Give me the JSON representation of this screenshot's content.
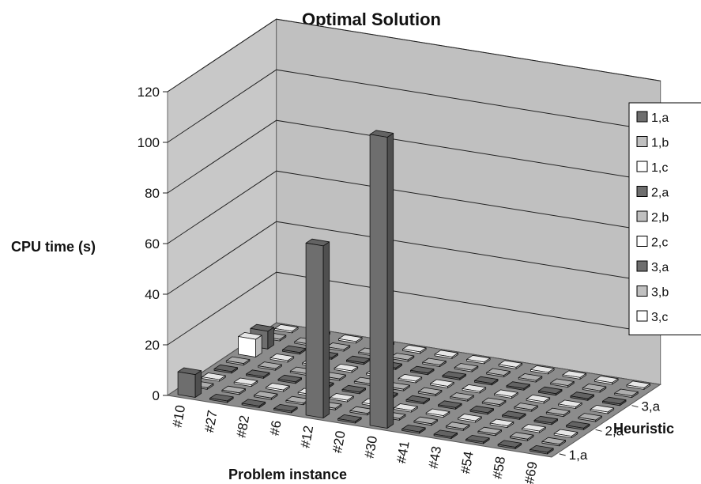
{
  "chart_data": {
    "type": "bar3d",
    "title": "Optimal Solution",
    "ylabel": "CPU time (s)",
    "xlabel": "Problem instance",
    "zlabel": "Heuristic",
    "ylim": [
      0,
      120
    ],
    "yticks": [
      0,
      20,
      40,
      60,
      80,
      100,
      120
    ],
    "categories": [
      "#10",
      "#27",
      "#82",
      "#6",
      "#12",
      "#20",
      "#30",
      "#41",
      "#43",
      "#54",
      "#58",
      "#69"
    ],
    "depth_tick_labels": [
      "1,a",
      "2,a",
      "3,a"
    ],
    "grid": true,
    "legend_position": "right",
    "series": [
      {
        "name": "1,a",
        "color": "#6e6e6e",
        "values": [
          9,
          0.6,
          0.6,
          0.6,
          68,
          0.6,
          115,
          0.6,
          0.6,
          0.6,
          0.6,
          0.6
        ]
      },
      {
        "name": "1,b",
        "color": "#c0c0c0",
        "values": [
          0.6,
          0.6,
          0.6,
          0.6,
          0.6,
          0.6,
          0.6,
          0.6,
          0.6,
          0.6,
          0.6,
          0.6
        ]
      },
      {
        "name": "1,c",
        "color": "#ffffff",
        "values": [
          0.6,
          0.6,
          0.6,
          0.6,
          0.6,
          0.6,
          0.6,
          0.6,
          0.6,
          0.6,
          0.6,
          0.6
        ]
      },
      {
        "name": "2,a",
        "color": "#6e6e6e",
        "values": [
          0.6,
          0.6,
          0.6,
          0.6,
          0.6,
          0.6,
          0.6,
          0.6,
          0.6,
          0.6,
          0.6,
          0.6
        ]
      },
      {
        "name": "2,b",
        "color": "#c0c0c0",
        "values": [
          0.6,
          0.6,
          0.6,
          0.6,
          0.6,
          0.6,
          0.6,
          0.6,
          0.6,
          0.6,
          0.6,
          0.6
        ]
      },
      {
        "name": "2,c",
        "color": "#ffffff",
        "values": [
          7,
          0.6,
          0.6,
          0.6,
          0.6,
          0.6,
          0.6,
          0.6,
          0.6,
          0.6,
          0.6,
          0.6
        ]
      },
      {
        "name": "3,a",
        "color": "#6e6e6e",
        "values": [
          7,
          0.6,
          0.6,
          0.6,
          0.6,
          0.6,
          0.6,
          0.6,
          0.6,
          0.6,
          0.6,
          0.6
        ]
      },
      {
        "name": "3,b",
        "color": "#c0c0c0",
        "values": [
          0.6,
          0.6,
          0.6,
          0.6,
          0.6,
          0.6,
          0.6,
          0.6,
          0.6,
          0.6,
          0.6,
          0.6
        ]
      },
      {
        "name": "3,c",
        "color": "#ffffff",
        "values": [
          0.6,
          0.6,
          0.6,
          0.6,
          0.6,
          0.6,
          0.6,
          0.6,
          0.6,
          0.6,
          0.6,
          0.6
        ]
      }
    ]
  }
}
